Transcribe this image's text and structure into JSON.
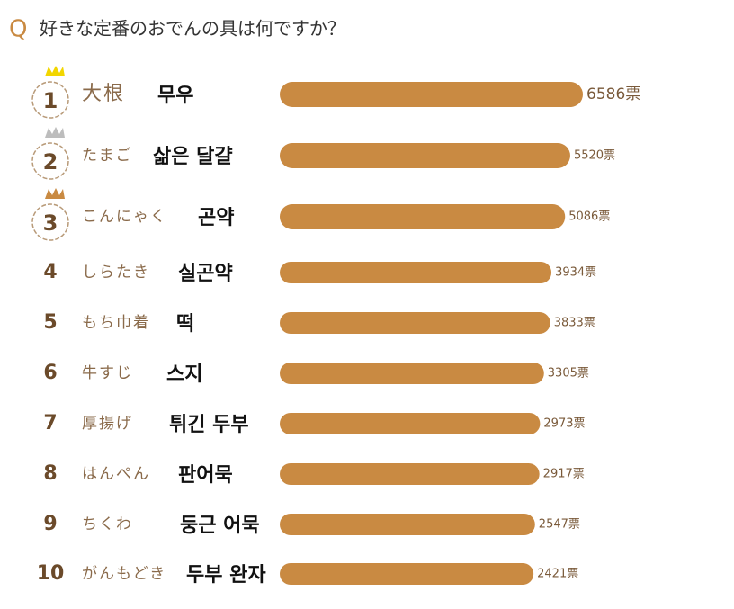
{
  "chart_data": {
    "type": "bar",
    "orientation": "horizontal",
    "title_prefix": "Q",
    "title": "好きな定番のおでんの具は何ですか？",
    "ranks": [
      "1",
      "2",
      "3",
      "4",
      "5",
      "6",
      "7",
      "8",
      "9",
      "10"
    ],
    "categories": [
      "大根",
      "たまご",
      "こんにゃく",
      "しらたき",
      "もち巾着",
      "牛すじ",
      "厚揚げ",
      "はんぺん",
      "ちくわ",
      "がんもどき"
    ],
    "annotations": [
      "무우",
      "삶은 달걀",
      "곤약",
      "실곤약",
      "떡",
      "스지",
      "튀긴 두부",
      "판어묵",
      "둥근 어묵",
      "두부 완자"
    ],
    "values": [
      6586,
      5520,
      5086,
      3934,
      3833,
      3305,
      2973,
      2917,
      2547,
      2421
    ],
    "value_labels": [
      "6586票",
      "5520票",
      "5086票",
      "3934票",
      "3833票",
      "3305票",
      "2973票",
      "2917票",
      "2547票",
      "2421票"
    ],
    "color": "#c98a42",
    "xlim": [
      -19000,
      6600
    ]
  }
}
